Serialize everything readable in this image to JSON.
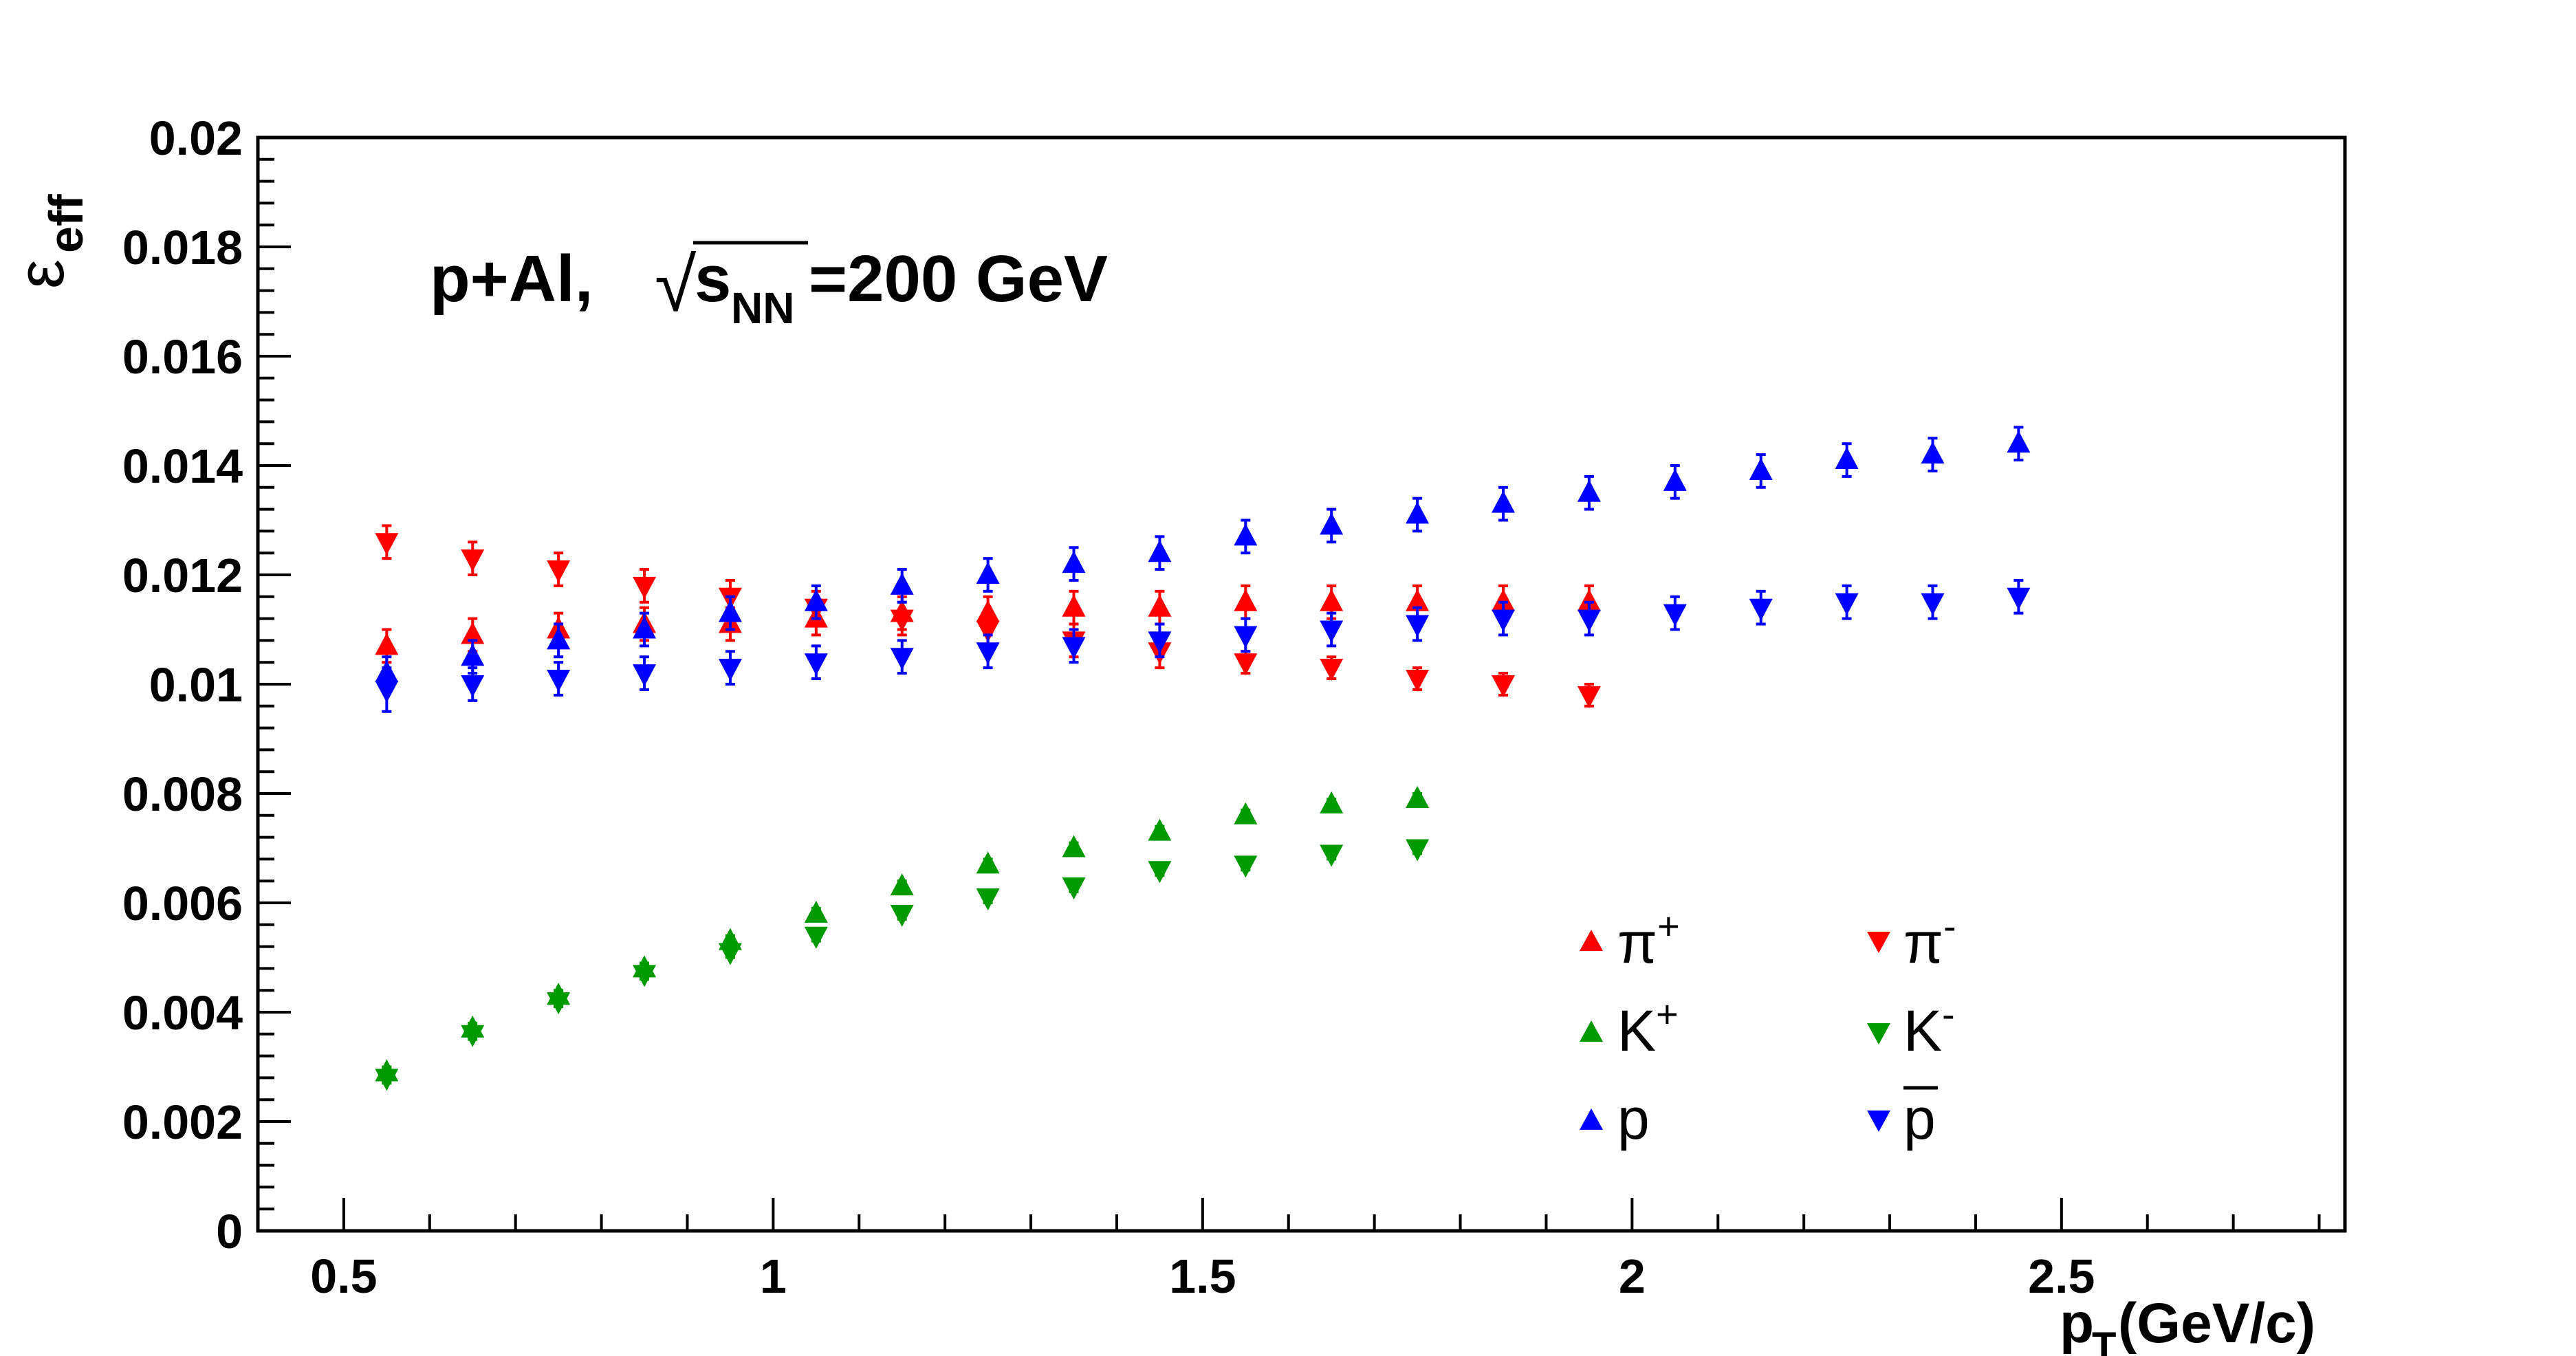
{
  "chart_data": {
    "type": "scatter",
    "annotation": {
      "system": "p+Al,",
      "sqrt_symbol": "√",
      "s": "s",
      "sub": "NN",
      "energy": "=200 GeV"
    },
    "xlabel": {
      "main": "p",
      "sub": "T",
      "rest": "(GeV/c)"
    },
    "ylabel": {
      "main": "ε",
      "sub": "eff"
    },
    "xlim": [
      0.4,
      2.83
    ],
    "ylim": [
      0,
      0.02
    ],
    "x_major_ticks": [
      0.5,
      1,
      1.5,
      2,
      2.5
    ],
    "x_tick_labels": [
      "0.5",
      "1",
      "1.5",
      "2",
      "2.5"
    ],
    "y_major_ticks": [
      0,
      0.002,
      0.004,
      0.006,
      0.008,
      0.01,
      0.012,
      0.014,
      0.016,
      0.018,
      0.02
    ],
    "y_tick_labels": [
      "0",
      "0.002",
      "0.004",
      "0.006",
      "0.008",
      "0.01",
      "0.012",
      "0.014",
      "0.016",
      "0.018",
      "0.02"
    ],
    "grid": false,
    "legend_placement": "bottom-right",
    "series": [
      {
        "id": "pi-plus",
        "name": "π",
        "sup": "+",
        "marker": "triangle-up",
        "color": "#ff0000",
        "x": [
          0.55,
          0.65,
          0.75,
          0.85,
          0.95,
          1.05,
          1.15,
          1.25,
          1.35,
          1.45,
          1.55,
          1.65,
          1.75,
          1.85,
          1.95
        ],
        "y": [
          0.0107,
          0.0109,
          0.011,
          0.0111,
          0.0111,
          0.0112,
          0.0113,
          0.0113,
          0.0114,
          0.0114,
          0.0115,
          0.0115,
          0.0115,
          0.0115,
          0.0115
        ],
        "err": [
          0.0003,
          0.0003,
          0.0003,
          0.0003,
          0.0003,
          0.0003,
          0.0003,
          0.0003,
          0.0003,
          0.0003,
          0.0003,
          0.0003,
          0.0003,
          0.0003,
          0.0003
        ]
      },
      {
        "id": "pi-minus",
        "name": "π",
        "sup": "-",
        "marker": "triangle-down",
        "color": "#ff0000",
        "x": [
          0.55,
          0.65,
          0.75,
          0.85,
          0.95,
          1.05,
          1.15,
          1.25,
          1.35,
          1.45,
          1.55,
          1.65,
          1.75,
          1.85,
          1.95
        ],
        "y": [
          0.0126,
          0.0123,
          0.0121,
          0.0118,
          0.0116,
          0.0114,
          0.0112,
          0.011,
          0.0108,
          0.0106,
          0.0104,
          0.0103,
          0.0101,
          0.01,
          0.0098
        ],
        "err": [
          0.0003,
          0.0003,
          0.0003,
          0.0003,
          0.0003,
          0.0003,
          0.0003,
          0.0003,
          0.0003,
          0.0003,
          0.0002,
          0.0002,
          0.0002,
          0.0002,
          0.0002
        ]
      },
      {
        "id": "k-plus",
        "name": "K",
        "sup": "+",
        "marker": "triangle-up",
        "color": "#009900",
        "x": [
          0.55,
          0.65,
          0.75,
          0.85,
          0.95,
          1.05,
          1.15,
          1.25,
          1.35,
          1.45,
          1.55,
          1.65,
          1.75
        ],
        "y": [
          0.0029,
          0.0037,
          0.0043,
          0.0048,
          0.0053,
          0.0058,
          0.0063,
          0.0067,
          0.007,
          0.0073,
          0.0076,
          0.0078,
          0.0079
        ],
        "err": [
          0.0001,
          0.0001,
          0.0001,
          0.0001,
          0.0001,
          0.0001,
          0.0001,
          0.0001,
          0.0001,
          0.0001,
          0.0001,
          0.0001,
          0.0001
        ]
      },
      {
        "id": "k-minus",
        "name": "K",
        "sup": "-",
        "marker": "triangle-down",
        "color": "#009900",
        "x": [
          0.55,
          0.65,
          0.75,
          0.85,
          0.95,
          1.05,
          1.15,
          1.25,
          1.35,
          1.45,
          1.55,
          1.65,
          1.75
        ],
        "y": [
          0.0028,
          0.0036,
          0.0042,
          0.0047,
          0.0051,
          0.0054,
          0.0058,
          0.0061,
          0.0063,
          0.0066,
          0.0067,
          0.0069,
          0.007
        ],
        "err": [
          0.0001,
          0.0001,
          0.0001,
          0.0001,
          0.0001,
          0.0001,
          0.0001,
          0.0001,
          0.0001,
          0.0001,
          0.0001,
          0.0001,
          0.0001
        ]
      },
      {
        "id": "proton",
        "name": "p",
        "sup": "",
        "marker": "triangle-up",
        "color": "#0000ff",
        "x": [
          0.55,
          0.65,
          0.75,
          0.85,
          0.95,
          1.05,
          1.15,
          1.25,
          1.35,
          1.45,
          1.55,
          1.65,
          1.75,
          1.85,
          1.95,
          2.05,
          2.15,
          2.25,
          2.35,
          2.45
        ],
        "y": [
          0.0102,
          0.0105,
          0.0108,
          0.011,
          0.0113,
          0.0115,
          0.0118,
          0.012,
          0.0122,
          0.0124,
          0.0127,
          0.0129,
          0.0131,
          0.0133,
          0.0135,
          0.0137,
          0.0139,
          0.0141,
          0.0142,
          0.0144
        ],
        "err": [
          0.0003,
          0.0003,
          0.0003,
          0.0003,
          0.0003,
          0.0003,
          0.0003,
          0.0003,
          0.0003,
          0.0003,
          0.0003,
          0.0003,
          0.0003,
          0.0003,
          0.0003,
          0.0003,
          0.0003,
          0.0003,
          0.0003,
          0.0003
        ]
      },
      {
        "id": "antiproton",
        "name": "p",
        "sup": "",
        "overline": true,
        "marker": "triangle-down",
        "color": "#0000ff",
        "x": [
          0.55,
          0.65,
          0.75,
          0.85,
          0.95,
          1.05,
          1.15,
          1.25,
          1.35,
          1.45,
          1.55,
          1.65,
          1.75,
          1.85,
          1.95,
          2.05,
          2.15,
          2.25,
          2.35,
          2.45
        ],
        "y": [
          0.0099,
          0.01,
          0.0101,
          0.0102,
          0.0103,
          0.0104,
          0.0105,
          0.0106,
          0.0107,
          0.0108,
          0.0109,
          0.011,
          0.0111,
          0.0112,
          0.0112,
          0.0113,
          0.0114,
          0.0115,
          0.0115,
          0.0116
        ],
        "err": [
          0.0004,
          0.0003,
          0.0003,
          0.0003,
          0.0003,
          0.0003,
          0.0003,
          0.0003,
          0.0003,
          0.0003,
          0.0003,
          0.0003,
          0.0003,
          0.0003,
          0.0003,
          0.0003,
          0.0003,
          0.0003,
          0.0003,
          0.0003
        ]
      }
    ]
  }
}
